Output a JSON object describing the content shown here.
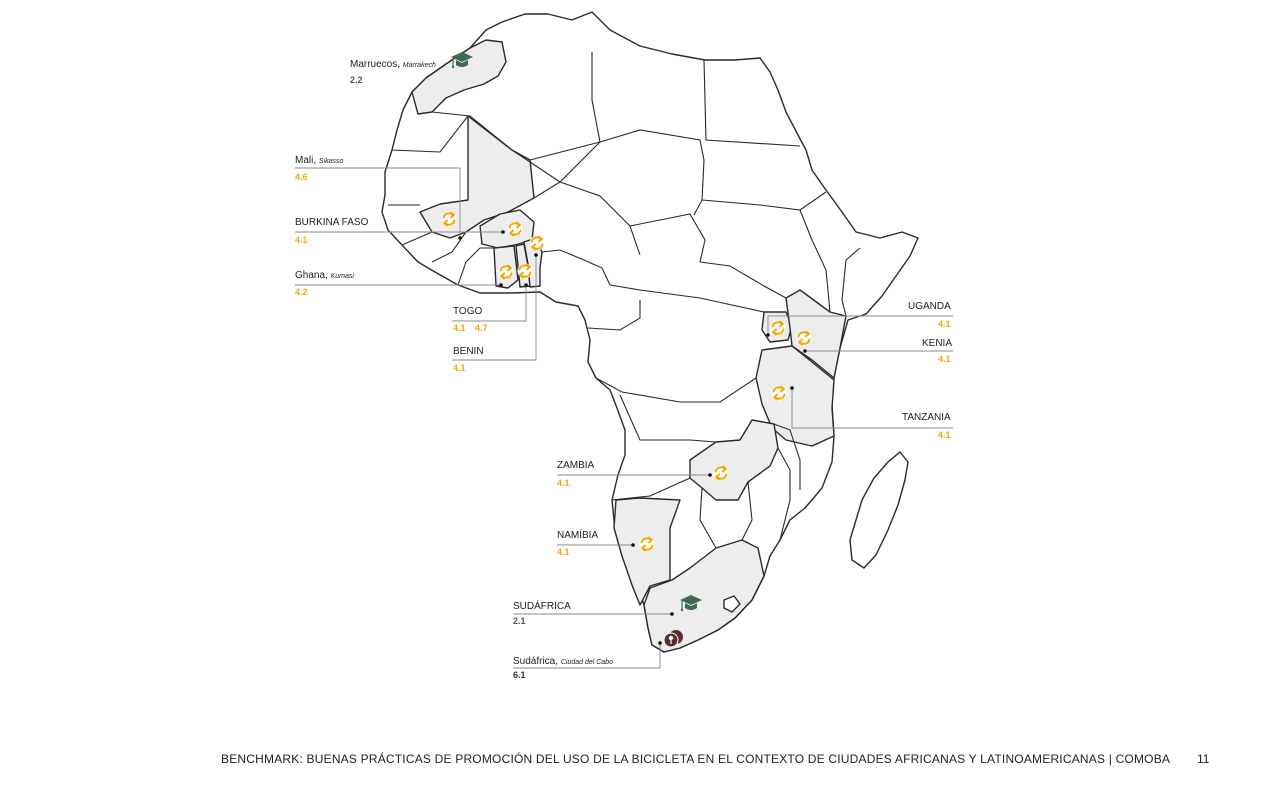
{
  "labels": {
    "marruecos": {
      "country": "Marruecos,",
      "city": "Marrakech",
      "value": "2.2"
    },
    "mali": {
      "country": "Mali,",
      "city": "Sikasso",
      "value": "4.6"
    },
    "burkina": {
      "country": "BURKINA FASO",
      "value": "4.1"
    },
    "ghana": {
      "country": "Ghana,",
      "city": "Kumasi",
      "value": "4.2"
    },
    "togo": {
      "country": "TOGO",
      "value_a": "4.1",
      "value_b": "4.7"
    },
    "benin": {
      "country": "BENIN",
      "value": "4.1"
    },
    "uganda": {
      "country": "UGANDA",
      "value": "4.1"
    },
    "kenia": {
      "country": "KENIA",
      "value": "4.1"
    },
    "tanzania": {
      "country": "TANZANIA",
      "value": "4.1"
    },
    "zambia": {
      "country": "ZAMBIA",
      "value": "4.1"
    },
    "namibia": {
      "country": "NAMÍBIA",
      "value": "4.1"
    },
    "sudafrica": {
      "country": "SUDÁFRICA",
      "value": "2.1"
    },
    "capetown": {
      "country": "Sudáfrica,",
      "city": "Ciudad del Cabo",
      "value": "6.1"
    }
  },
  "colors": {
    "accent_gold": "#f2a900",
    "academic_green": "#3f6b55",
    "cape_brown": "#5a2e2a",
    "highlight_fill": "#ededed"
  },
  "icons": {
    "bike_share": "recycle-arrows-icon",
    "academic": "graduation-cap-icon",
    "cape_town": "location-pin-icon"
  },
  "footer": {
    "text": "BENCHMARK: BUENAS PRÁCTICAS DE PROMOCIÓN DEL USO DE LA BICICLETA EN EL CONTEXTO DE CIUDADES AFRICANAS Y LATINOAMERICANAS | COMOBA",
    "page": "11"
  }
}
